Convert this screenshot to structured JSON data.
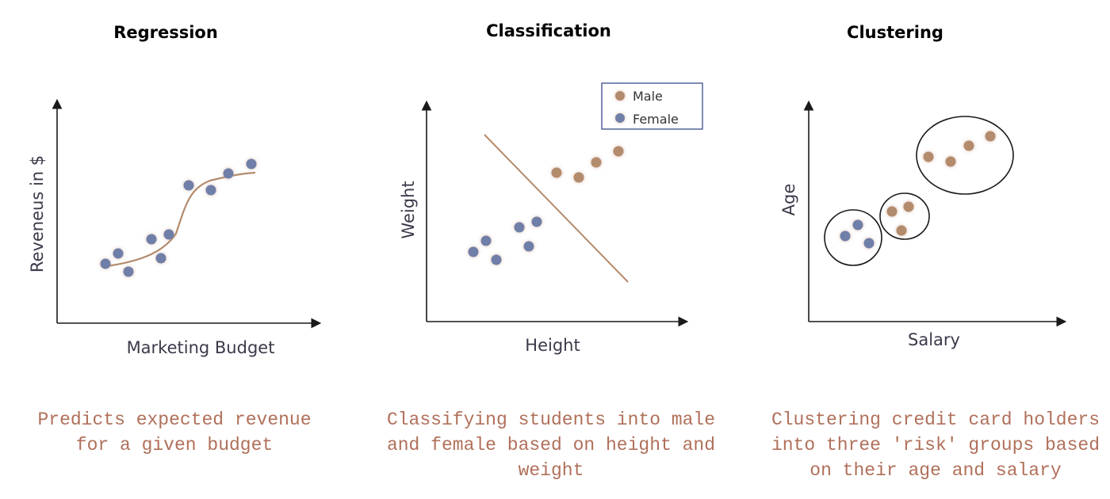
{
  "colors": {
    "blue_point": "#6f7fa8",
    "brown_point": "#b38b6d",
    "curve": "#b38b6d",
    "axis": "#1a1a1a",
    "caption": "#b0705a",
    "legend_border": "#3a4a8a"
  },
  "panels": [
    {
      "title": "Regression",
      "xlabel": "Marketing Budget",
      "ylabel": "Reveneus in $",
      "caption": "Predicts expected revenue\nfor a given budget"
    },
    {
      "title": "Classification",
      "xlabel": "Height",
      "ylabel": "Weight",
      "caption": "Classifying students into male\nand female based on height and\nweight",
      "legend": [
        {
          "label": "Male",
          "color": "#b38b6d"
        },
        {
          "label": "Female",
          "color": "#6f7fa8"
        }
      ]
    },
    {
      "title": "Clustering",
      "xlabel": "Salary",
      "ylabel": "Age",
      "caption": "Clustering credit card holders\ninto three 'risk' groups based\non their age and salary"
    }
  ]
}
